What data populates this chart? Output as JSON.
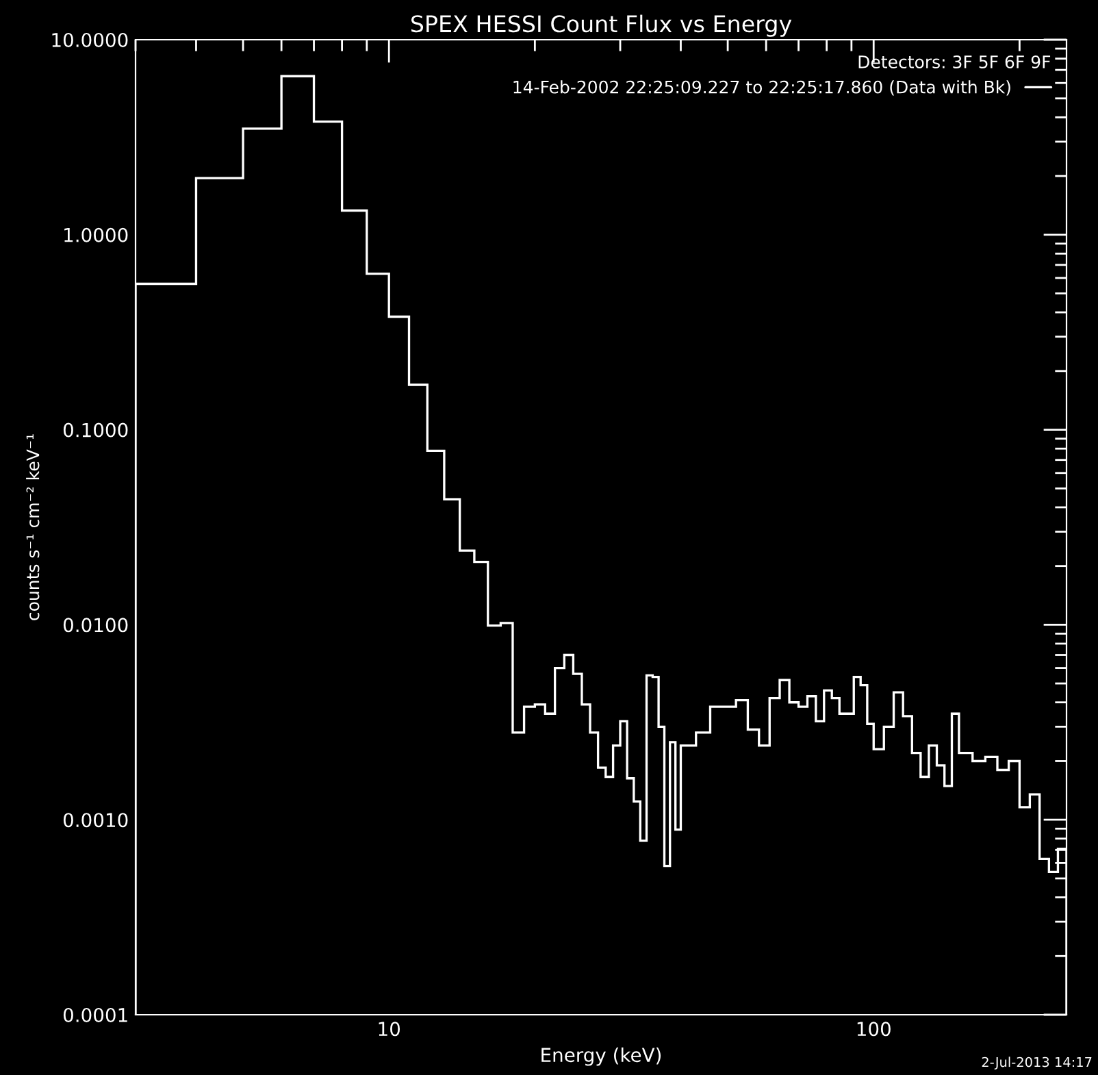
{
  "chart_data": {
    "type": "histogram",
    "title": "SPEX HESSI Count Flux vs Energy",
    "xlabel": "Energy (keV)",
    "ylabel": "counts s⁻¹ cm⁻² keV⁻¹",
    "legend_title": "Detectors: 3F 5F 6F 9F",
    "legend": "top right",
    "log": "xy",
    "annotations": [
      "2-Jul-2013 14:17"
    ],
    "xlim": [
      3,
      250
    ],
    "ylim": [
      0.0001,
      10
    ],
    "xticks": [
      10,
      100
    ],
    "yticks": [
      {
        "value": 0.0001,
        "label": "0.0001"
      },
      {
        "value": 0.001,
        "label": "0.0010"
      },
      {
        "value": 0.01,
        "label": "0.0100"
      },
      {
        "value": 0.1,
        "label": "0.1000"
      },
      {
        "value": 1,
        "label": "1.0000"
      },
      {
        "value": 10,
        "label": "10.0000"
      }
    ],
    "bins": [
      3,
      4,
      5,
      6,
      7,
      8,
      9,
      10,
      11,
      12,
      13,
      14,
      15,
      16,
      17,
      18,
      19,
      20,
      21,
      22,
      23,
      24,
      25,
      26,
      27,
      28,
      29,
      30,
      31,
      32,
      33,
      34,
      35,
      36,
      37,
      38,
      39,
      40,
      43,
      46,
      49,
      52,
      55,
      58,
      61,
      64,
      67,
      70,
      73,
      76,
      79,
      82,
      85,
      88,
      91,
      94,
      97,
      100,
      105,
      110,
      115,
      120,
      125,
      130,
      135,
      140,
      145,
      150,
      160,
      170,
      180,
      190,
      200,
      210,
      220,
      230,
      240,
      250
    ],
    "series": [
      {
        "name": "14-Feb-2002 22:25:09.227 to 22:25:17.860 (Data with Bk)",
        "color": "#ffffff",
        "values": [
          0.56,
          1.95,
          3.5,
          6.5,
          3.8,
          1.33,
          0.63,
          0.38,
          0.17,
          0.078,
          0.044,
          0.024,
          0.021,
          0.0099,
          0.0102,
          0.0028,
          0.0038,
          0.0039,
          0.0035,
          0.006,
          0.007,
          0.0056,
          0.0039,
          0.0028,
          0.00185,
          0.00166,
          0.0024,
          0.0032,
          0.00163,
          0.00124,
          0.00078,
          0.0055,
          0.0054,
          0.003,
          0.00058,
          0.0025,
          0.00089,
          0.0024,
          0.0028,
          0.0038,
          0.0038,
          0.0041,
          0.0029,
          0.0024,
          0.0042,
          0.0052,
          0.004,
          0.0038,
          0.0043,
          0.0032,
          0.0046,
          0.0042,
          0.0035,
          0.0035,
          0.0054,
          0.0049,
          0.0031,
          0.0023,
          0.003,
          0.0045,
          0.0034,
          0.0022,
          0.00166,
          0.0024,
          0.0019,
          0.00149,
          0.0035,
          0.0022,
          0.002,
          0.0021,
          0.0018,
          0.002,
          0.00116,
          0.00135,
          0.00063,
          0.00054,
          0.00071
        ]
      }
    ]
  }
}
